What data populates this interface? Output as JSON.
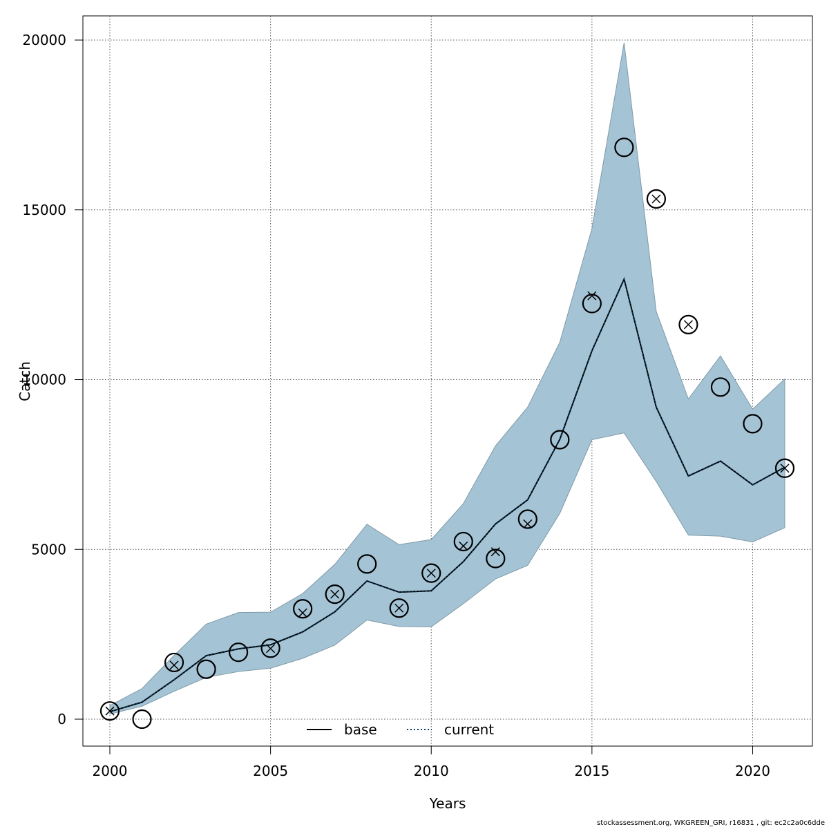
{
  "chart_data": {
    "type": "line",
    "xlabel": "Years",
    "ylabel": "Catch",
    "xlim": [
      2000,
      2021
    ],
    "ylim": [
      0,
      20000
    ],
    "x_ticks": [
      2000,
      2005,
      2010,
      2015,
      2020
    ],
    "y_ticks": [
      0,
      5000,
      10000,
      15000,
      20000
    ],
    "grid": true,
    "legend_position": "bottom-center",
    "x": [
      2000,
      2001,
      2002,
      2003,
      2004,
      2005,
      2006,
      2007,
      2008,
      2009,
      2010,
      2011,
      2012,
      2013,
      2014,
      2015,
      2016,
      2017,
      2018,
      2019,
      2020,
      2021
    ],
    "band": {
      "lower": [
        150,
        380,
        820,
        1230,
        1400,
        1500,
        1790,
        2180,
        2920,
        2730,
        2720,
        3400,
        4130,
        4530,
        6060,
        8230,
        8430,
        7000,
        5420,
        5390,
        5220,
        5640
      ],
      "upper": [
        400,
        900,
        1880,
        2800,
        3140,
        3150,
        3700,
        4560,
        5740,
        5140,
        5290,
        6350,
        8050,
        9190,
        11100,
        14450,
        19920,
        12010,
        9430,
        10700,
        9130,
        10020
      ],
      "color": "#a4c3d4"
    },
    "series": [
      {
        "name": "base",
        "style": "solid",
        "color": "#000000",
        "values": [
          220,
          500,
          1160,
          1870,
          2070,
          2190,
          2570,
          3160,
          4070,
          3740,
          3780,
          4640,
          5750,
          6460,
          8240,
          10850,
          12960,
          9190,
          7160,
          7600,
          6900,
          7420
        ]
      },
      {
        "name": "current",
        "style": "dotted",
        "color": "#0a3a5e",
        "values": [
          220,
          500,
          1160,
          1870,
          2070,
          2190,
          2570,
          3160,
          4070,
          3740,
          3780,
          4640,
          5750,
          6460,
          8240,
          10850,
          12960,
          9190,
          7160,
          7600,
          6900,
          7420
        ]
      }
    ],
    "observed_base": [
      240,
      0,
      1670,
      1470,
      1970,
      2090,
      3250,
      3680,
      4570,
      3270,
      4300,
      5230,
      4730,
      5890,
      8230,
      12240,
      16840,
      15320,
      11620,
      9780,
      8700,
      7390
    ],
    "observed_current": [
      240,
      null,
      1590,
      null,
      null,
      2080,
      3130,
      3680,
      null,
      3270,
      4300,
      5100,
      4930,
      5750,
      null,
      12470,
      null,
      15320,
      11620,
      null,
      null,
      7390
    ]
  },
  "footer": "stockassessment.org, WKGREEN_GRI, r16831 , git: ec2c2a0c6dde"
}
